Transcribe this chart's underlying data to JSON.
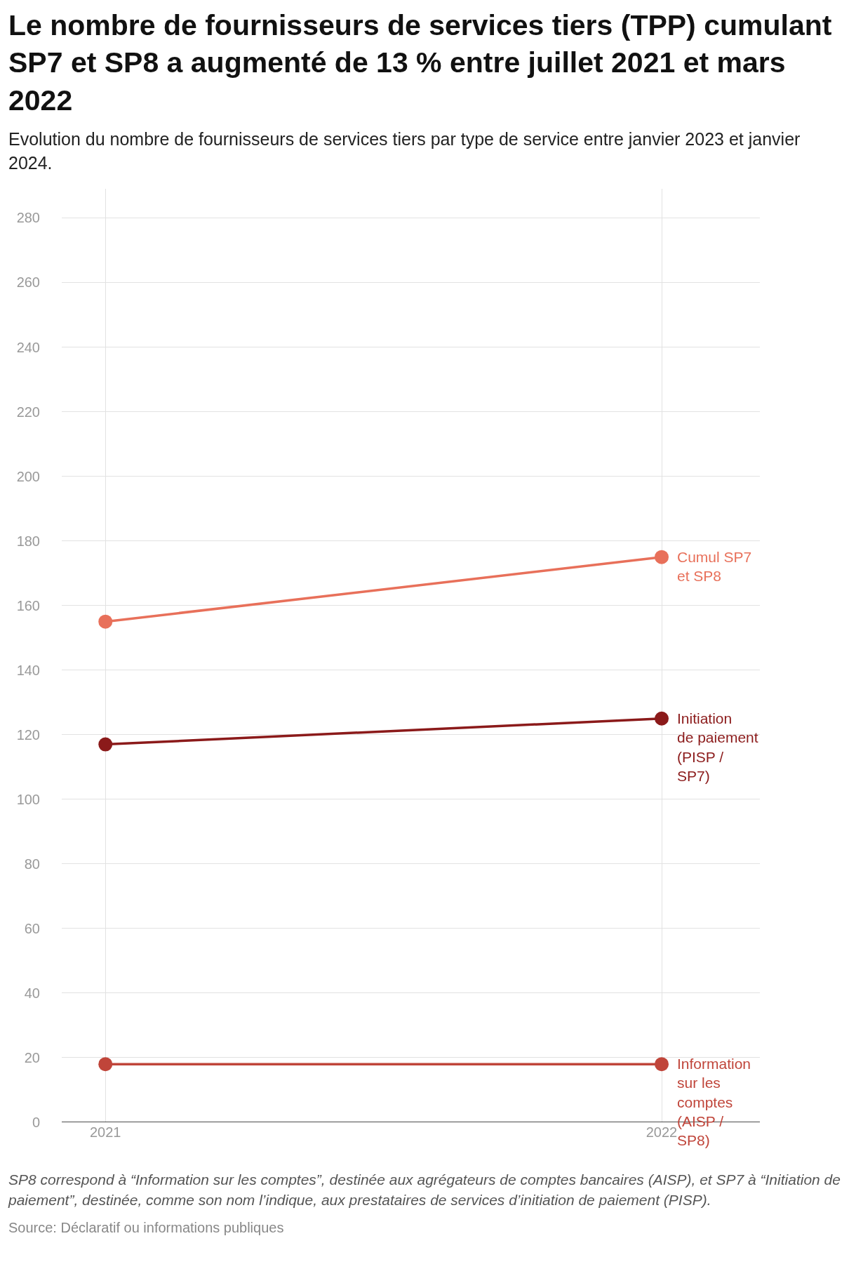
{
  "chart_data": {
    "type": "line",
    "title": "Le nombre de fournisseurs de services tiers (TPP) cumulant SP7 et SP8 a augmenté de 13 % entre juillet 2021 et mars 2022",
    "subtitle": "Evolution du nombre de fournisseurs de services tiers par type de service entre janvier 2023 et janvier 2024.",
    "categories": [
      "2021",
      "2022"
    ],
    "series": [
      {
        "name": "Cumul SP7 et SP8",
        "color": "#e8705a",
        "values": [
          155,
          175
        ]
      },
      {
        "name": "Initiation de paiement (PISP / SP7)",
        "color": "#8b1a1a",
        "values": [
          117,
          125
        ]
      },
      {
        "name": "Information sur les comptes (AISP / SP8)",
        "color": "#c0453a",
        "values": [
          18,
          18
        ]
      }
    ],
    "ylim": [
      0,
      289
    ],
    "yticks": [
      0,
      20,
      40,
      60,
      80,
      100,
      120,
      140,
      160,
      180,
      200,
      220,
      240,
      260,
      280
    ],
    "grid": true,
    "legend": false,
    "marker": "circle",
    "line_style": "solid",
    "annotations": [
      "SP8 correspond à “Information sur les comptes”, destinée aux agrégateurs de comptes bancaires (AISP), et SP7 à “Initiation de paiement”, destinée, comme son nom l’indique, aux prestataires de services d’initiation de paiement (PISP).",
      "Source: Déclaratif ou informations publiques"
    ]
  }
}
